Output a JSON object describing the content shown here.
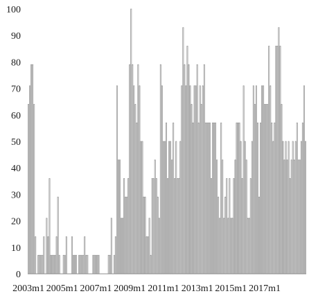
{
  "chart_data": {
    "type": "bar",
    "title": "",
    "xlabel": "",
    "ylabel": "",
    "ylim": [
      0,
      100
    ],
    "yticks": [
      0,
      10,
      20,
      30,
      40,
      50,
      60,
      70,
      80,
      90,
      100
    ],
    "grid": false,
    "legend": "none",
    "bar_fill": "#ffffff",
    "bar_stroke": "#9a9a9a",
    "x_start": "2003m1",
    "x_tick_labels": [
      "2003m1",
      "2005m1",
      "2007m1",
      "2009m1",
      "2011m1",
      "2013m1",
      "2015m1",
      "2017m1"
    ],
    "values": [
      64,
      71,
      79,
      79,
      64,
      14,
      0,
      7,
      7,
      7,
      7,
      14,
      0,
      21,
      14,
      36,
      7,
      7,
      7,
      7,
      14,
      29,
      7,
      0,
      0,
      7,
      7,
      14,
      0,
      0,
      0,
      14,
      7,
      7,
      7,
      0,
      7,
      7,
      7,
      7,
      14,
      7,
      7,
      0,
      0,
      0,
      7,
      7,
      7,
      7,
      7,
      0,
      0,
      0,
      0,
      0,
      0,
      7,
      7,
      21,
      0,
      7,
      14,
      71,
      43,
      43,
      21,
      21,
      36,
      29,
      29,
      36,
      79,
      100,
      79,
      71,
      64,
      57,
      79,
      71,
      50,
      50,
      29,
      29,
      14,
      14,
      21,
      7,
      36,
      36,
      43,
      36,
      29,
      21,
      79,
      71,
      50,
      50,
      57,
      36,
      50,
      50,
      43,
      57,
      36,
      50,
      36,
      36,
      50,
      71,
      93,
      79,
      71,
      86,
      79,
      71,
      64,
      57,
      71,
      71,
      79,
      57,
      71,
      64,
      71,
      79,
      57,
      57,
      57,
      57,
      36,
      57,
      57,
      57,
      43,
      29,
      21,
      57,
      43,
      21,
      29,
      36,
      21,
      36,
      21,
      21,
      36,
      43,
      57,
      57,
      57,
      50,
      36,
      71,
      50,
      43,
      21,
      21,
      36,
      50,
      71,
      64,
      71,
      57,
      29,
      57,
      71,
      71,
      64,
      64,
      64,
      86,
      71,
      57,
      50,
      57,
      86,
      86,
      93,
      86,
      64,
      50,
      43,
      50,
      43,
      50,
      36,
      43,
      50,
      43,
      50,
      57,
      43,
      43,
      50,
      57,
      71,
      50
    ]
  }
}
